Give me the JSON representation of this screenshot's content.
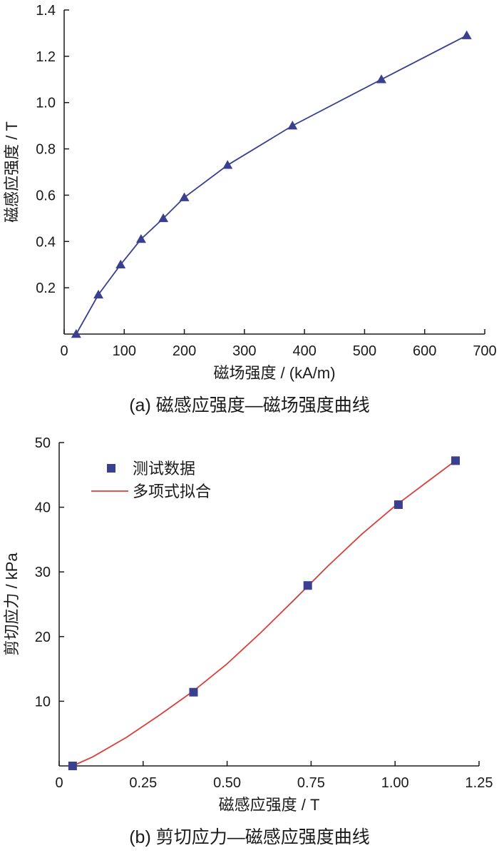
{
  "colors": {
    "series_a": "#3a3f8f",
    "series_b_points": "#3a3f8f",
    "series_b_fit": "#d9403a",
    "axis": "#1a1a1a"
  },
  "chart_data": [
    {
      "type": "line",
      "caption": "(a) 磁感应强度—磁场强度曲线",
      "xlabel": "磁场强度 / (kA/m)",
      "ylabel": "磁感应强度 / T",
      "xlim": [
        0,
        700
      ],
      "ylim": [
        0,
        1.4
      ],
      "xticks": [
        0,
        100,
        200,
        300,
        400,
        500,
        600,
        700
      ],
      "xtick_labels": [
        "0",
        "100",
        "200",
        "300",
        "400",
        "500",
        "600",
        "700"
      ],
      "yticks": [
        0.2,
        0.4,
        0.6,
        0.8,
        1.0,
        1.2,
        1.4
      ],
      "ytick_labels": [
        "0.2",
        "0.4",
        "0.6",
        "0.8",
        "1.0",
        "1.2",
        "1.4"
      ],
      "marker": "triangle",
      "grid": false,
      "series": [
        {
          "x": [
            20,
            57,
            94,
            128,
            165,
            200,
            272,
            380,
            528,
            670
          ],
          "y": [
            0.0,
            0.17,
            0.3,
            0.41,
            0.5,
            0.59,
            0.73,
            0.9,
            1.1,
            1.29
          ]
        }
      ]
    },
    {
      "type": "scatter",
      "caption": "(b) 剪切应力—磁感应强度曲线",
      "xlabel": "磁感应强度 / T",
      "ylabel": "剪切应力 / kPa",
      "xlim": [
        0,
        1.25
      ],
      "ylim": [
        0,
        50
      ],
      "xticks": [
        0,
        0.25,
        0.5,
        0.75,
        1.0,
        1.25
      ],
      "xtick_labels": [
        "0",
        "0.25",
        "0.50",
        "0.75",
        "1.00",
        "1.25"
      ],
      "yticks": [
        10,
        20,
        30,
        40,
        50
      ],
      "ytick_labels": [
        "10",
        "20",
        "30",
        "40",
        "50"
      ],
      "grid": false,
      "legend": {
        "position": "top-left"
      },
      "series": [
        {
          "name": "测试数据",
          "kind": "points",
          "marker": "square",
          "x": [
            0.04,
            0.4,
            0.74,
            1.01,
            1.18
          ],
          "y": [
            0.0,
            11.4,
            27.9,
            40.4,
            47.2
          ]
        },
        {
          "name": "多项式拟合",
          "kind": "line",
          "x": [
            0.04,
            0.1,
            0.2,
            0.3,
            0.4,
            0.5,
            0.6,
            0.7,
            0.8,
            0.9,
            1.0,
            1.1,
            1.18
          ],
          "y": [
            0.0,
            1.4,
            4.4,
            7.9,
            11.6,
            15.8,
            20.6,
            25.7,
            30.9,
            35.8,
            40.2,
            44.1,
            47.2
          ]
        }
      ]
    }
  ]
}
